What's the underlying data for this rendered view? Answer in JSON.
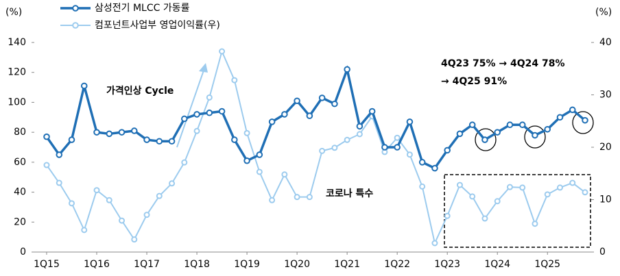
{
  "chart_data": {
    "type": "line",
    "ylabel": "(%)",
    "y2label": "(%)",
    "categories": [
      "1Q15",
      null,
      null,
      null,
      "1Q16",
      null,
      null,
      null,
      "1Q17",
      null,
      null,
      null,
      "1Q18",
      null,
      null,
      null,
      "1Q19",
      null,
      null,
      null,
      "1Q20",
      null,
      null,
      null,
      "1Q21",
      null,
      null,
      null,
      "1Q22",
      null,
      null,
      null,
      "1Q23",
      null,
      null,
      null,
      "1Q24",
      null,
      null,
      null,
      "1Q25",
      null,
      null,
      null
    ],
    "series": [
      {
        "name": "삼성전기 MLCC 가동률",
        "color": "#1f6fb5",
        "values": [
          77,
          65,
          75,
          111,
          80,
          79,
          80,
          81,
          75,
          74,
          74,
          89,
          92,
          93,
          94,
          75,
          61,
          65,
          87,
          92,
          101,
          91,
          103,
          99,
          122,
          84,
          94,
          70,
          70,
          87,
          60,
          56,
          68,
          79,
          85,
          75,
          80,
          85,
          85,
          78,
          82,
          90,
          95,
          88
        ]
      },
      {
        "name": "컴포넌트사업부 영업이익률(우)",
        "color": "#9ccbee",
        "axis": "y2",
        "values": [
          16.6,
          13.2,
          9.3,
          4.2,
          11.8,
          9.9,
          6.0,
          2.4,
          7.1,
          10.7,
          13.1,
          17.1,
          23.1,
          29.5,
          38.3,
          32.8,
          22.7,
          15.3,
          9.9,
          14.8,
          10.5,
          10.5,
          19.3,
          19.9,
          21.4,
          22.5,
          25.9,
          19.1,
          21.8,
          18.6,
          12.5,
          1.7,
          6.9,
          12.8,
          10.6,
          6.4,
          9.7,
          12.4,
          12.3,
          5.4,
          11.0,
          12.3,
          13.2,
          11.4
        ]
      }
    ],
    "ylim": [
      0,
      140
    ],
    "yticks": [
      0,
      20,
      40,
      60,
      80,
      100,
      120,
      140
    ],
    "y2lim": [
      0,
      40
    ],
    "y2ticks": [
      0,
      10,
      20,
      30,
      40
    ],
    "annotations": [
      "가격인상 Cycle",
      "코로나 특수",
      "4Q23 75% → 4Q24 78%",
      "→ 4Q25 91%"
    ]
  }
}
